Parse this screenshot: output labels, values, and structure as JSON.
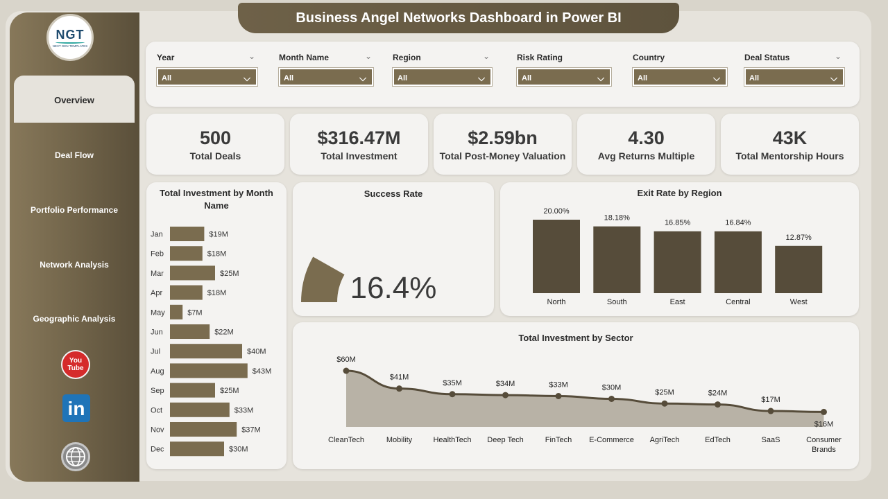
{
  "title": "Business Angel Networks Dashboard in Power BI",
  "logo": {
    "text": "NGT",
    "subtext": "NEXT GEN TEMPLATES"
  },
  "nav": [
    {
      "label": "Overview",
      "active": true
    },
    {
      "label": "Deal Flow"
    },
    {
      "label": "Portfolio Performance"
    },
    {
      "label": "Network Analysis"
    },
    {
      "label": "Geographic Analysis"
    }
  ],
  "social": {
    "youtube_text": "You Tube",
    "linkedin_text": "in",
    "icons": [
      "youtube-icon",
      "linkedin-icon",
      "globe-icon"
    ]
  },
  "filters": [
    {
      "label": "Year",
      "value": "All"
    },
    {
      "label": "Month Name",
      "value": "All"
    },
    {
      "label": "Region",
      "value": "All"
    },
    {
      "label": "Risk Rating",
      "value": "All"
    },
    {
      "label": "Country",
      "value": "All"
    },
    {
      "label": "Deal Status",
      "value": "All"
    }
  ],
  "kpis": [
    {
      "value": "500",
      "label": "Total Deals"
    },
    {
      "value": "$316.47M",
      "label": "Total Investment"
    },
    {
      "value": "$2.59bn",
      "label": "Total Post-Money Valuation"
    },
    {
      "value": "4.30",
      "label": "Avg Returns Multiple"
    },
    {
      "value": "43K",
      "label": "Total Mentorship Hours"
    }
  ],
  "colors": {
    "accent": "#7a6c4f",
    "dark_bar": "#564c3a",
    "area_fill": "#b8b2a6"
  },
  "chart_data": [
    {
      "type": "bar",
      "orientation": "horizontal",
      "title": "Total Investment by Month Name",
      "categories": [
        "Jan",
        "Feb",
        "Mar",
        "Apr",
        "May",
        "Jun",
        "Jul",
        "Aug",
        "Sep",
        "Oct",
        "Nov",
        "Dec"
      ],
      "values": [
        19,
        18,
        25,
        18,
        7,
        22,
        40,
        43,
        25,
        33,
        37,
        30
      ],
      "labels": [
        "$19M",
        "$18M",
        "$25M",
        "$18M",
        "$7M",
        "$22M",
        "$40M",
        "$43M",
        "$25M",
        "$33M",
        "$37M",
        "$30M"
      ],
      "unit": "$M"
    },
    {
      "type": "gauge",
      "title": "Success Rate",
      "value": 16.4,
      "display": "16.4%",
      "max": 100
    },
    {
      "type": "bar",
      "title": "Exit Rate by Region",
      "categories": [
        "North",
        "South",
        "East",
        "Central",
        "West"
      ],
      "values": [
        20.0,
        18.18,
        16.85,
        16.84,
        12.87
      ],
      "labels": [
        "20.00%",
        "18.18%",
        "16.85%",
        "16.84%",
        "12.87%"
      ],
      "unit": "%"
    },
    {
      "type": "area",
      "title": "Total Investment by Sector",
      "categories": [
        "CleanTech",
        "Mobility",
        "HealthTech",
        "Deep Tech",
        "FinTech",
        "E-Commerce",
        "AgriTech",
        "EdTech",
        "SaaS",
        "Consumer Brands"
      ],
      "values": [
        60,
        41,
        35,
        34,
        33,
        30,
        25,
        24,
        17,
        16
      ],
      "labels": [
        "$60M",
        "$41M",
        "$35M",
        "$34M",
        "$33M",
        "$30M",
        "$25M",
        "$24M",
        "$17M",
        "$16M"
      ],
      "unit": "$M"
    }
  ]
}
